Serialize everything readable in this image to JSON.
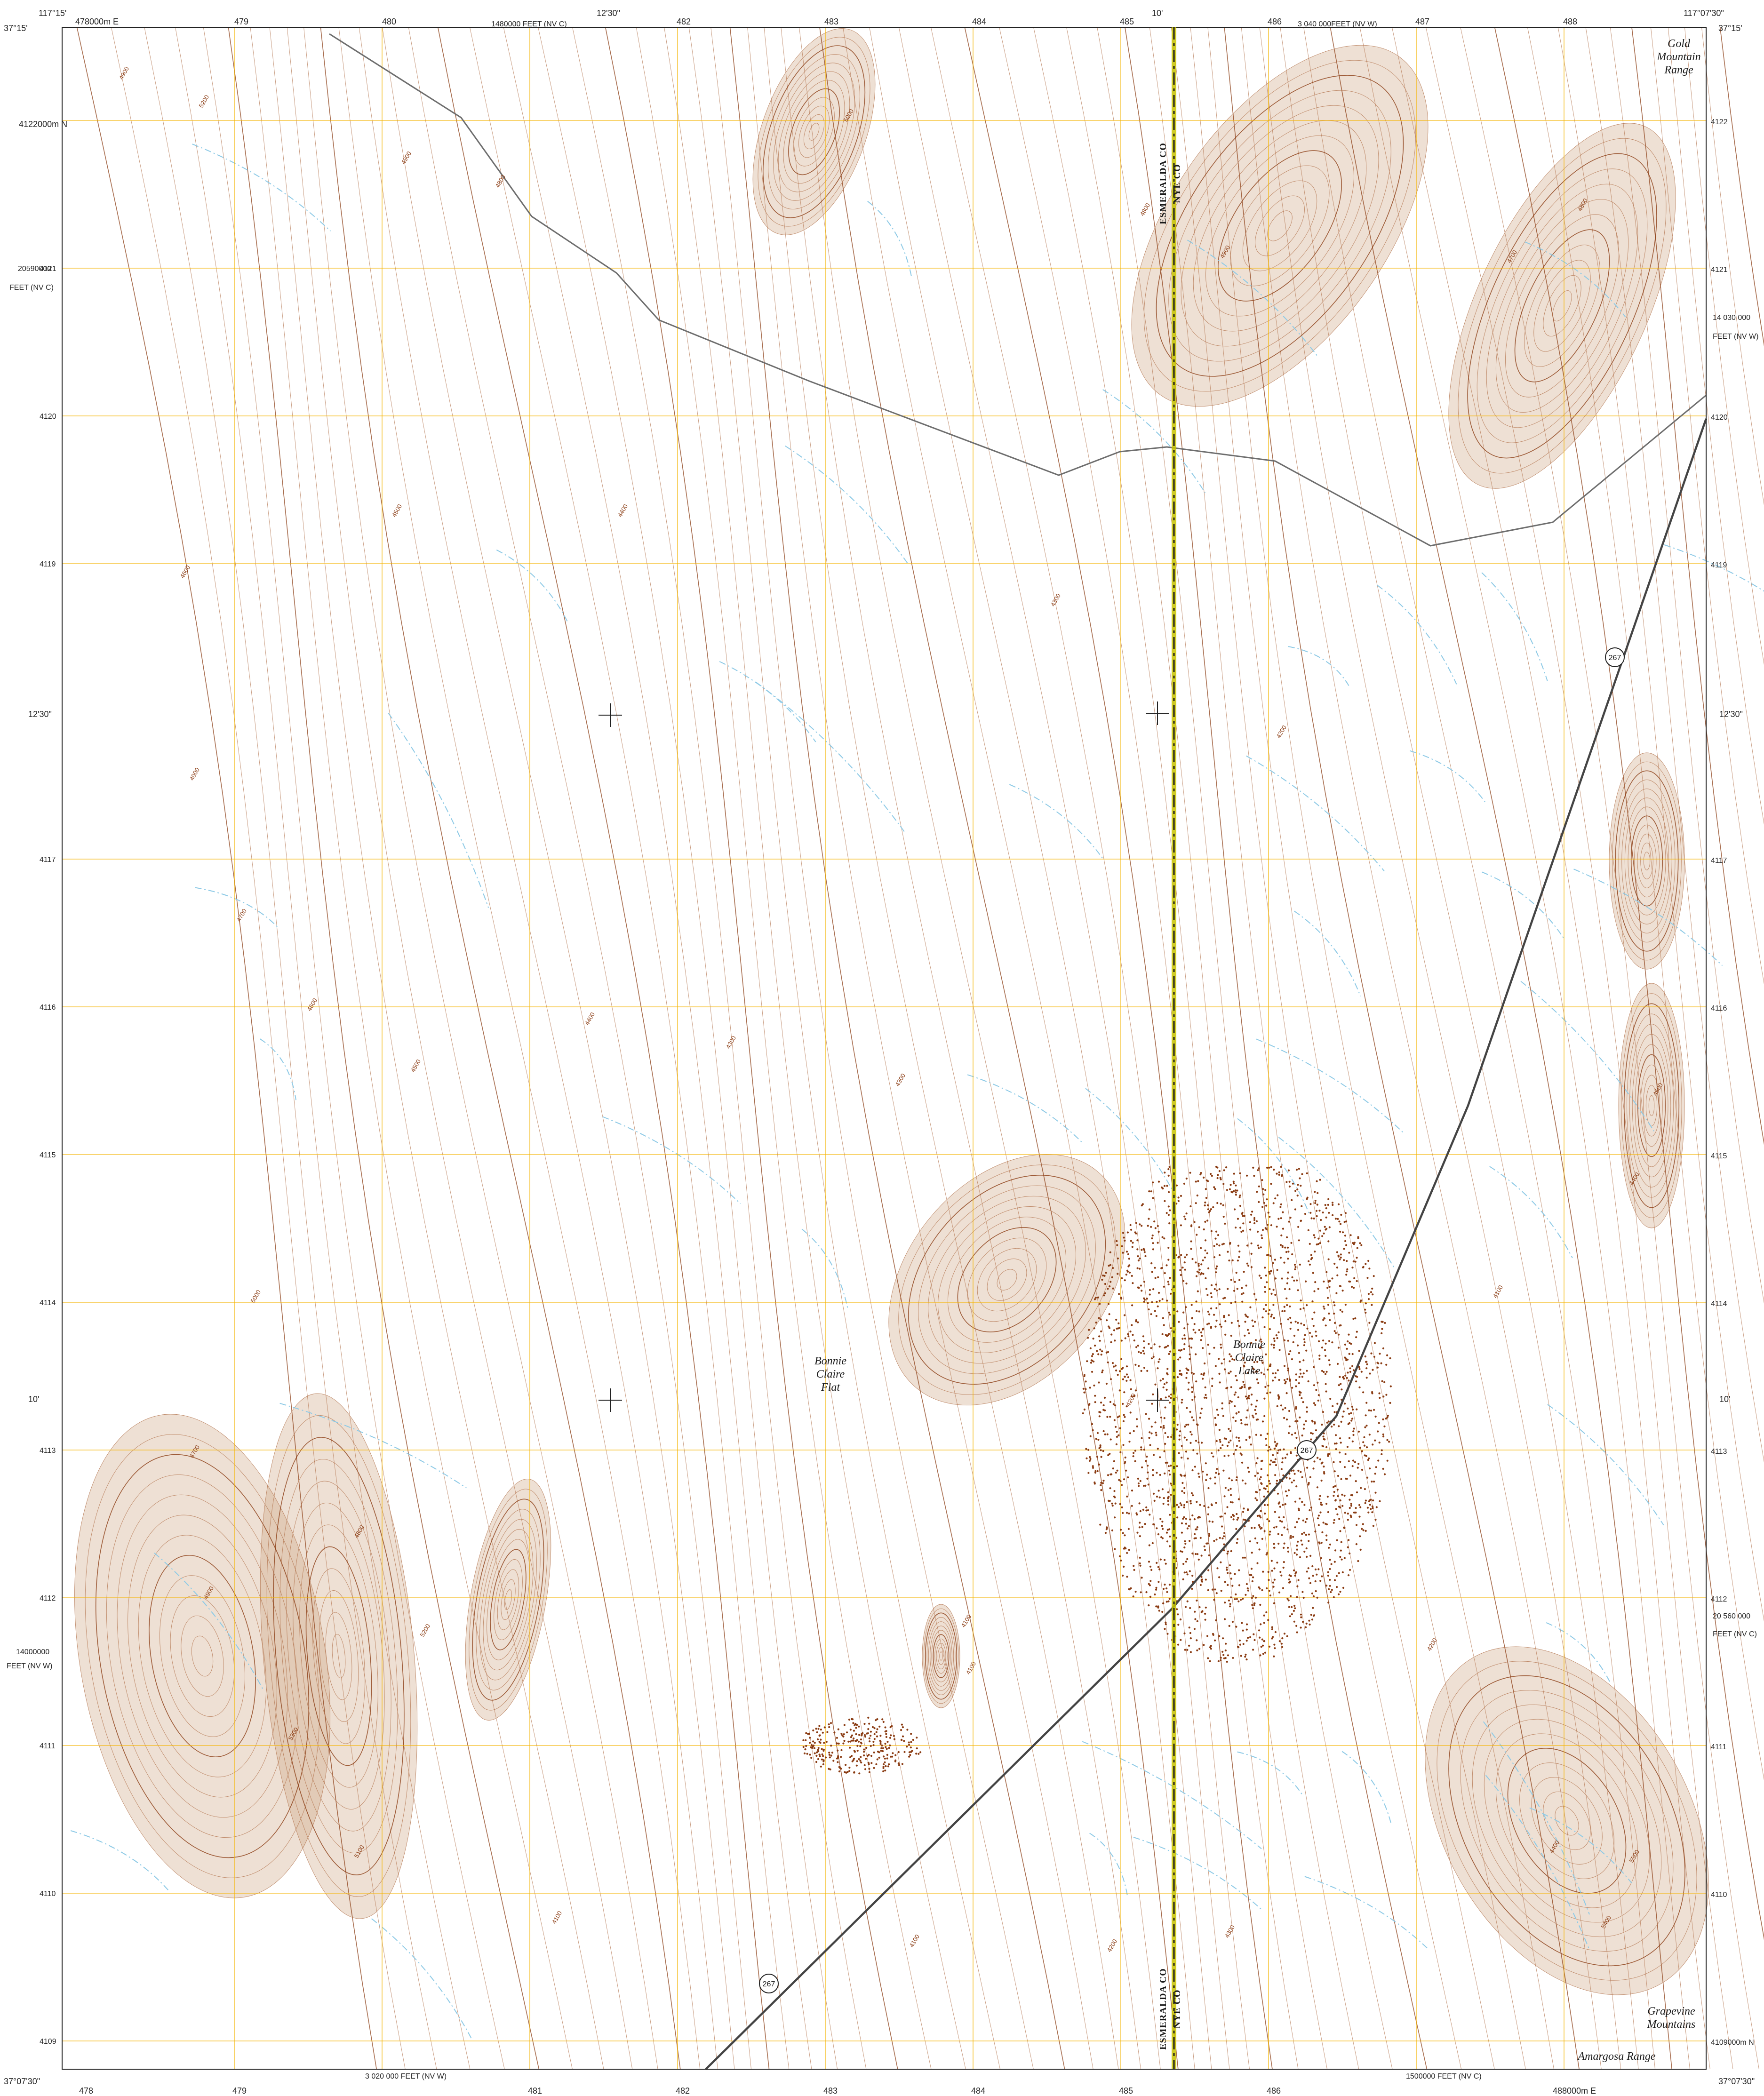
{
  "map": {
    "colors": {
      "paper": "#ffffff",
      "grid": "#f5b400",
      "contour": "#b0704a",
      "contour_index": "#8a3b12",
      "relief": "#c9a07a",
      "water": "#8ecae6",
      "road": "#6e6e6e",
      "highway": "#444444",
      "county_line": "#1a1a1a",
      "county_band": "#c8c400",
      "lake_dots": "#8a3b12"
    },
    "corners": {
      "top_left_lon": "117°15'",
      "top_left_lat": "37°15'",
      "top_right_lon": "117°07'30\"",
      "top_right_lat": "37°15'",
      "bottom_left_lat": "37°07'30\"",
      "bottom_right_lat": "37°07'30\""
    },
    "top_edge": {
      "first_tick": "478000m E",
      "ticks": [
        "479",
        "480",
        "481",
        "482",
        "483",
        "484",
        "485",
        "486",
        "487",
        "488"
      ],
      "minute_12_30": "12'30\"",
      "minute_10": "10'",
      "nvc_feet": "1480000 FEET (NV C)",
      "nvw_feet": "3 040 000FEET (NV W)"
    },
    "bottom_edge": {
      "ticks": [
        "478",
        "479",
        "480",
        "481",
        "482",
        "483",
        "484",
        "485",
        "486",
        "487"
      ],
      "last_tick": "488000m E",
      "nvw_feet": "3 020 000 FEET (NV W)",
      "nvc_feet": "1500000 FEET (NV C)"
    },
    "left_edge": {
      "first_tick": "4122000m N",
      "ticks": [
        "4121",
        "4120",
        "4119",
        "4117",
        "4116",
        "4115",
        "4114",
        "4113",
        "4112",
        "4111",
        "4110"
      ],
      "last_tick": "4109",
      "minute_12_30": "12'30\"",
      "minute_10": "10'",
      "nvc_feet_1": "20590000",
      "nvc_feet_2": "FEET (NV C)",
      "nvw_feet_1": "14000000",
      "nvw_feet_2": "FEET (NV W)"
    },
    "right_edge": {
      "ticks": [
        "4122",
        "4121",
        "4120",
        "4119",
        "4117",
        "4116",
        "4115",
        "4114",
        "4113",
        "4112",
        "4111",
        "4110"
      ],
      "last_tick": "4109000m N",
      "minute_12_30": "12'30\"",
      "minute_10": "10'",
      "nvw_feet_1": "14 030 000",
      "nvw_feet_2": "FEET (NV W)",
      "nvc_feet_1": "20 560 000",
      "nvc_feet_2": "FEET (NV C)"
    },
    "counties": {
      "west": "ESMERALDA CO",
      "east": "NYE CO"
    },
    "places": {
      "gold_mountain": [
        "Gold",
        "Mountain",
        "Range"
      ],
      "bonnie_claire_flat": [
        "Bonnie",
        "Claire",
        "Flat"
      ],
      "bonnie_claire_lake": [
        "Bonnie",
        "Claire",
        "Lake"
      ],
      "grapevine": [
        "Grapevine",
        "Mountains"
      ],
      "amargosa": "Amargosa Range"
    },
    "route_number": "267",
    "contour_values": [
      "5200",
      "5000",
      "4900",
      "4800",
      "4700",
      "4600",
      "4500",
      "4400",
      "4300",
      "4200",
      "4100",
      "5100",
      "5300",
      "5400",
      "5500"
    ]
  }
}
